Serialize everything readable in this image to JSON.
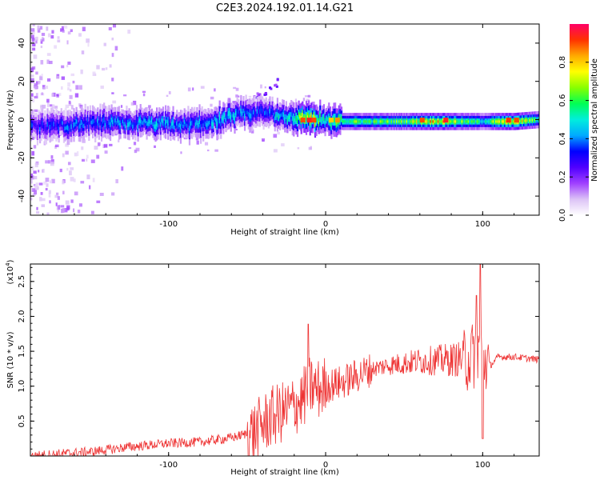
{
  "figure": {
    "title": "C2E3.2024.192.01.14.G21"
  },
  "chart_data": [
    {
      "type": "heatmap",
      "xlabel": "Height of straight line (km)",
      "ylabel": "Frequency (Hz)",
      "xlim": [
        -188,
        136
      ],
      "ylim": [
        -50,
        50
      ],
      "xticks": [
        -100,
        0,
        100
      ],
      "yticks": [
        -40,
        -20,
        0,
        20,
        40
      ],
      "colorbar": {
        "label": "Normalized spectral amplitude",
        "range": [
          0,
          1
        ],
        "ticks": [
          "0.0",
          "0.2",
          "0.4",
          "0.6",
          "0.8"
        ],
        "colormap": [
          "#ffffff",
          "#dcc3f6",
          "#a040ff",
          "#5000ff",
          "#0000ff",
          "#00aaff",
          "#00eedd",
          "#00ff55",
          "#88ff00",
          "#ffff00",
          "#ffaa00",
          "#ff3300",
          "#ff0066"
        ]
      },
      "ridge": {
        "description_free": true,
        "x": [
          -188,
          -170,
          -150,
          -130,
          -110,
          -90,
          -70,
          -60,
          -50,
          -40,
          -30,
          -20,
          -10,
          0,
          10,
          30,
          50,
          70,
          90,
          100,
          110,
          120,
          136
        ],
        "frequency": [
          -4,
          -3,
          -2,
          -2,
          -2,
          -3,
          -1,
          2,
          3,
          4,
          2,
          1,
          1,
          -1,
          -1,
          -1,
          -1,
          -1,
          -1,
          -1,
          -1,
          -1,
          0
        ],
        "amplitude": [
          0.35,
          0.35,
          0.4,
          0.4,
          0.45,
          0.4,
          0.45,
          0.45,
          0.4,
          0.35,
          0.5,
          0.55,
          0.8,
          0.55,
          0.65,
          0.6,
          0.65,
          0.85,
          0.6,
          0.55,
          0.7,
          0.85,
          0.55
        ]
      }
    },
    {
      "type": "line",
      "xlabel": "Height of straight line (km)",
      "ylabel": "SNR (10 * v/v)",
      "y_multiplier": "(x10",
      "y_multiplier_exp": "4",
      "xlim": [
        -188,
        136
      ],
      "ylim": [
        0,
        27500
      ],
      "xticks": [
        -100,
        0,
        100
      ],
      "yticks": [
        5000,
        10000,
        15000,
        20000,
        25000
      ],
      "ytick_labels": [
        "0.5",
        "1.0",
        "1.5",
        "2.0",
        "2.5"
      ],
      "color": "#ee3333",
      "series": [
        {
          "x": [
            -188,
            -170,
            -150,
            -125,
            -100,
            -80,
            -60,
            -45,
            -35,
            -25,
            -15,
            -10,
            -5,
            0,
            10,
            20,
            30,
            40,
            50,
            60,
            70,
            80,
            90,
            95,
            98,
            100,
            105,
            110,
            120,
            136
          ],
          "values": [
            0,
            300,
            600,
            1300,
            1800,
            2000,
            2600,
            3500,
            5500,
            6500,
            8000,
            10000,
            9500,
            10000,
            10500,
            11500,
            12500,
            13000,
            13300,
            13600,
            13700,
            13800,
            14000,
            14500,
            16000,
            14000,
            13000,
            14200,
            14200,
            13800
          ]
        }
      ],
      "spikes": [
        {
          "x": -11,
          "value": 18900
        },
        {
          "x": 96,
          "value": 23000
        },
        {
          "x": 98.5,
          "value": 27500
        },
        {
          "x": 100,
          "value": 2500
        }
      ]
    }
  ]
}
